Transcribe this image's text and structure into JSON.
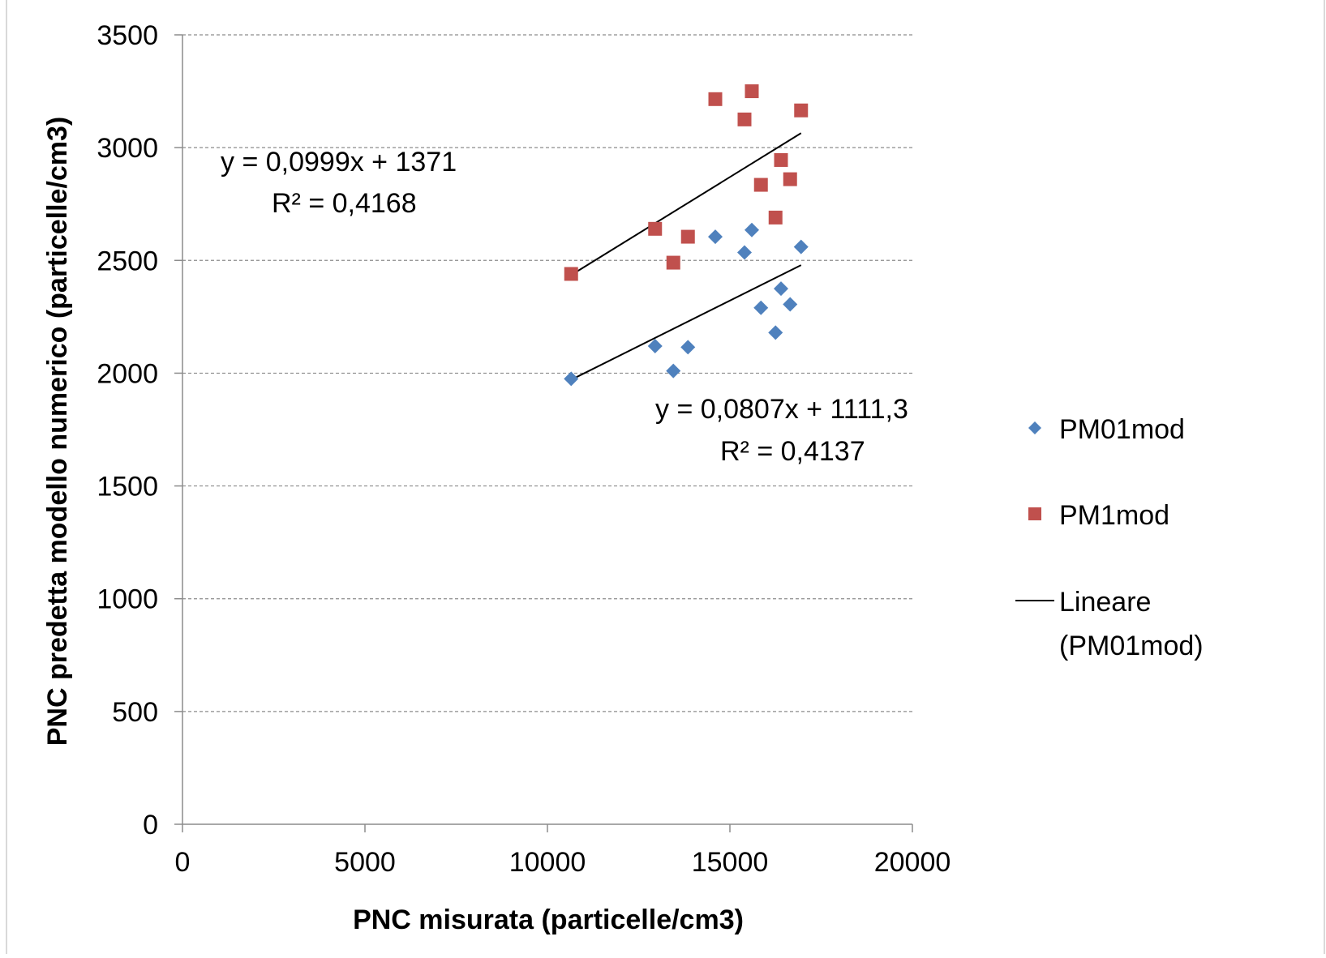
{
  "chart_data": {
    "type": "scatter",
    "title": "",
    "xlabel": "PNC misurata (particelle/cm3)",
    "ylabel": "PNC predetta modello numerico (particelle/cm3)",
    "xlim": [
      0,
      20000
    ],
    "ylim": [
      0,
      3500
    ],
    "x_ticks": [
      "0",
      "5000",
      "10000",
      "15000",
      "20000"
    ],
    "y_ticks": [
      "0",
      "500",
      "1000",
      "1500",
      "2000",
      "2500",
      "3000",
      "3500"
    ],
    "grid": "horizontal-dashed",
    "legend_position": "right",
    "series": [
      {
        "name": "PM01mod",
        "marker": "diamond",
        "color": "#4F81BD",
        "points": [
          [
            10650,
            1975
          ],
          [
            12950,
            2120
          ],
          [
            13450,
            2010
          ],
          [
            13850,
            2115
          ],
          [
            14600,
            2605
          ],
          [
            15400,
            2535
          ],
          [
            15600,
            2635
          ],
          [
            15850,
            2290
          ],
          [
            16250,
            2180
          ],
          [
            16400,
            2375
          ],
          [
            16650,
            2305
          ],
          [
            16950,
            2560
          ]
        ]
      },
      {
        "name": "PM1mod",
        "marker": "square",
        "color": "#C0504D",
        "points": [
          [
            10650,
            2440
          ],
          [
            12950,
            2640
          ],
          [
            13450,
            2490
          ],
          [
            13850,
            2605
          ],
          [
            14600,
            3215
          ],
          [
            15400,
            3125
          ],
          [
            15600,
            3250
          ],
          [
            15850,
            2835
          ],
          [
            16250,
            2690
          ],
          [
            16400,
            2945
          ],
          [
            16650,
            2860
          ],
          [
            16950,
            3165
          ]
        ]
      }
    ],
    "trendlines": [
      {
        "series": "PM1mod",
        "slope": 0.0999,
        "intercept": 1371,
        "x_range": [
          10650,
          16950
        ],
        "equation": "y = 0,0999x + 1371",
        "r2": "R² = 0,4168"
      },
      {
        "series": "PM01mod",
        "slope": 0.0807,
        "intercept": 1111.3,
        "x_range": [
          10650,
          16950
        ],
        "equation": "y = 0,0807x + 1111,3",
        "r2": "R² = 0,4137"
      }
    ],
    "legend": [
      {
        "label": "PM01mod",
        "marker": "diamond",
        "color": "#4F81BD"
      },
      {
        "label": "PM1mod",
        "marker": "square",
        "color": "#C0504D"
      },
      {
        "label_lines": [
          "Lineare",
          "(PM01mod)"
        ],
        "marker": "line",
        "color": "#000000"
      }
    ]
  }
}
